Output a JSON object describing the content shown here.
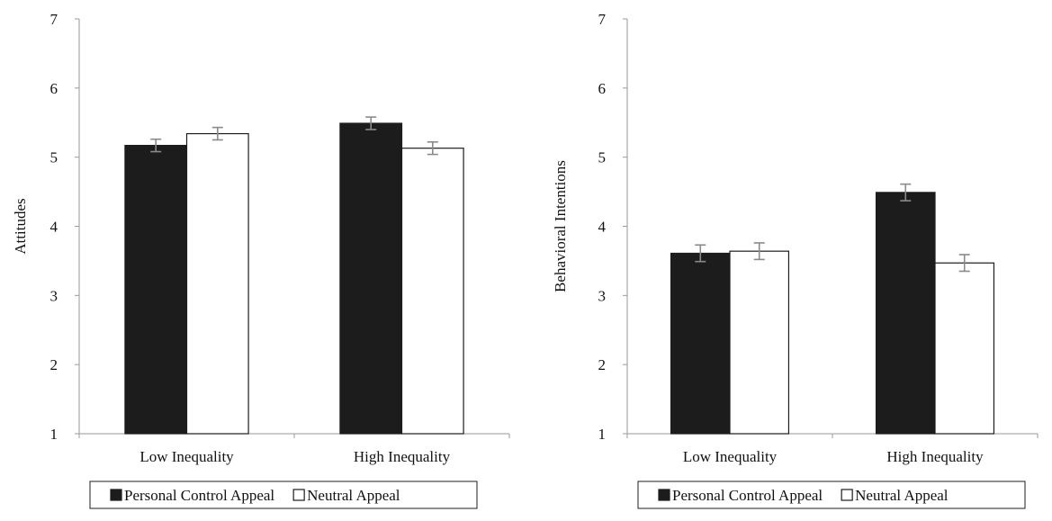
{
  "chart_data": [
    {
      "type": "bar",
      "title": "",
      "xlabel": "",
      "ylabel": "Attitudes",
      "ylim": [
        1,
        7
      ],
      "yticks": [
        1,
        2,
        3,
        4,
        5,
        6,
        7
      ],
      "grid": false,
      "legend_position": "bottom",
      "categories": [
        "Low Inequality",
        "High Inequality"
      ],
      "series": [
        {
          "name": "Personal Control Appeal",
          "color": "#1c1c1c",
          "values": [
            5.17,
            5.49
          ],
          "errors": [
            0.09,
            0.09
          ]
        },
        {
          "name": "Neutral Appeal",
          "color": "#ffffff",
          "values": [
            5.34,
            5.13
          ],
          "errors": [
            0.09,
            0.09
          ]
        }
      ]
    },
    {
      "type": "bar",
      "title": "",
      "xlabel": "",
      "ylabel": "Behavioral Intentions",
      "ylim": [
        1,
        7
      ],
      "yticks": [
        1,
        2,
        3,
        4,
        5,
        6,
        7
      ],
      "grid": false,
      "legend_position": "bottom",
      "categories": [
        "Low Inequality",
        "High Inequality"
      ],
      "series": [
        {
          "name": "Personal Control Appeal",
          "color": "#1c1c1c",
          "values": [
            3.61,
            4.49
          ],
          "errors": [
            0.12,
            0.12
          ]
        },
        {
          "name": "Neutral Appeal",
          "color": "#ffffff",
          "values": [
            3.64,
            3.47
          ],
          "errors": [
            0.12,
            0.12
          ]
        }
      ]
    }
  ]
}
